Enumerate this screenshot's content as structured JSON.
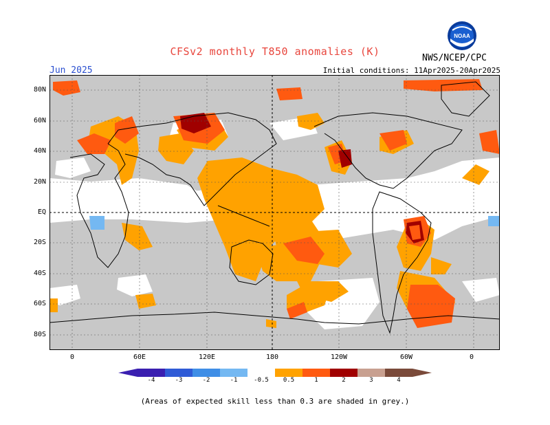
{
  "header": {
    "title": "CFSv2 monthly T850 anomalies (K)",
    "month": "Jun 2025",
    "initial_conditions": "Initial conditions: 11Apr2025-20Apr2025",
    "agency": "NWS/NCEP/CPC",
    "logo_text": "NOAA"
  },
  "map": {
    "lat_labels": [
      "80N",
      "60N",
      "40N",
      "20N",
      "EQ",
      "20S",
      "40S",
      "60S",
      "80S"
    ],
    "lon_labels": [
      "0",
      "60E",
      "120E",
      "180",
      "120W",
      "60W",
      "0"
    ],
    "gridline_style": "dotted",
    "reference_lines": [
      "equator",
      "180 meridian"
    ]
  },
  "colorbar": {
    "labels": [
      "-4",
      "-3",
      "-2",
      "-1",
      "-0.5",
      "0.5",
      "1",
      "2",
      "3",
      "4"
    ],
    "colors": [
      "#3a1fb0",
      "#2f5bd6",
      "#3f8ee6",
      "#74b8f2",
      "#ffffff",
      "#ffa200",
      "#ff5a10",
      "#a00000",
      "#c8a090",
      "#7a4a3a"
    ]
  },
  "legend_colors": {
    "grey_mask": "#c8c8c8",
    "orange": "#ffa200",
    "red_orange": "#ff5a10",
    "dark_red": "#a00000",
    "light_blue": "#74b8f2"
  },
  "footnote": "(Areas of expected skill less than 0.3 are shaded in grey.)"
}
